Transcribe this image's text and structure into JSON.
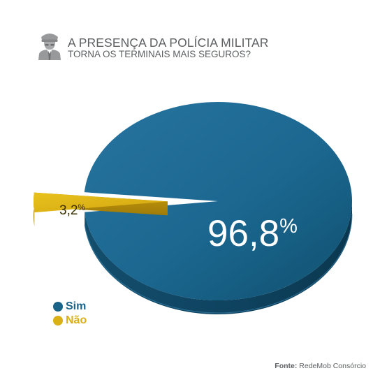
{
  "header": {
    "title_line1": "A PRESENÇA DA POLÍCIA MILITAR",
    "title_line2": "TORNA OS TERMINAIS MAIS SEGUROS?",
    "icon": "police-officer-icon"
  },
  "chart_data": {
    "type": "pie",
    "title": "A PRESENÇA DA POLÍCIA MILITAR TORNA OS TERMINAIS MAIS SEGUROS?",
    "slices": [
      {
        "label": "Sim",
        "value": 96.8,
        "display": "96,8%",
        "color": "#1a6389"
      },
      {
        "label": "Não",
        "value": 3.2,
        "display": "3,2%",
        "color": "#d9b015"
      }
    ],
    "style": "3d-exploded",
    "legend": "bottom-left"
  },
  "legend": {
    "items": [
      {
        "label": "Sim",
        "color": "#1a6389"
      },
      {
        "label": "Não",
        "color": "#d9b015"
      }
    ]
  },
  "source": {
    "prefix": "Fonte:",
    "text": "RedeMob Consórcio"
  }
}
